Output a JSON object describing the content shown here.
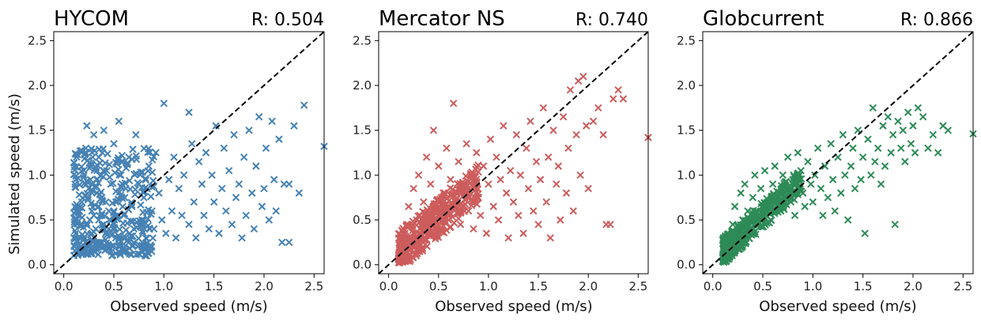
{
  "figure": {
    "ylabel": "Simulated speed (m/s)"
  },
  "chart_data": [
    {
      "type": "scatter",
      "title": "HYCOM",
      "r_label": "R: 0.504",
      "xlabel": "Observed speed (m/s)",
      "ylabel": "Simulated speed (m/s)",
      "xlim": [
        -0.1,
        2.6
      ],
      "ylim": [
        -0.1,
        2.6
      ],
      "xticks": [
        "0.0",
        "0.5",
        "1.0",
        "1.5",
        "2.0",
        "2.5"
      ],
      "yticks": [
        "0.0",
        "0.5",
        "1.0",
        "1.5",
        "2.0",
        "2.5"
      ],
      "reference_line": "y = x",
      "marker": "x",
      "color": "#4682b4",
      "points": [
        [
          0.12,
          0.35
        ],
        [
          0.15,
          0.55
        ],
        [
          0.18,
          0.7
        ],
        [
          0.2,
          1.0
        ],
        [
          0.2,
          0.3
        ],
        [
          0.22,
          0.45
        ],
        [
          0.22,
          1.3
        ],
        [
          0.23,
          1.55
        ],
        [
          0.25,
          0.2
        ],
        [
          0.25,
          0.85
        ],
        [
          0.27,
          1.1
        ],
        [
          0.28,
          0.6
        ],
        [
          0.3,
          0.15
        ],
        [
          0.3,
          1.45
        ],
        [
          0.32,
          0.4
        ],
        [
          0.33,
          0.95
        ],
        [
          0.35,
          1.2
        ],
        [
          0.35,
          0.5
        ],
        [
          0.37,
          0.25
        ],
        [
          0.38,
          0.75
        ],
        [
          0.4,
          1.5
        ],
        [
          0.42,
          0.35
        ],
        [
          0.43,
          1.05
        ],
        [
          0.45,
          0.6
        ],
        [
          0.45,
          0.2
        ],
        [
          0.47,
          0.9
        ],
        [
          0.5,
          1.35
        ],
        [
          0.5,
          0.45
        ],
        [
          0.52,
          0.7
        ],
        [
          0.55,
          1.6
        ],
        [
          0.55,
          0.3
        ],
        [
          0.57,
          1.0
        ],
        [
          0.6,
          0.55
        ],
        [
          0.62,
          0.85
        ],
        [
          0.65,
          0.25
        ],
        [
          0.65,
          1.2
        ],
        [
          0.68,
          0.65
        ],
        [
          0.7,
          0.4
        ],
        [
          0.72,
          1.45
        ],
        [
          0.75,
          0.9
        ],
        [
          0.78,
          0.5
        ],
        [
          0.8,
          0.75
        ],
        [
          0.82,
          0.3
        ],
        [
          0.85,
          1.1
        ],
        [
          0.88,
          0.6
        ],
        [
          0.9,
          0.4
        ],
        [
          0.92,
          1.25
        ],
        [
          0.95,
          0.8
        ],
        [
          0.98,
          0.5
        ],
        [
          1.0,
          1.8
        ],
        [
          1.02,
          0.35
        ],
        [
          1.05,
          0.95
        ],
        [
          1.08,
          0.6
        ],
        [
          1.1,
          1.2
        ],
        [
          1.12,
          0.3
        ],
        [
          1.15,
          0.85
        ],
        [
          1.18,
          0.55
        ],
        [
          1.2,
          1.0
        ],
        [
          1.25,
          1.7
        ],
        [
          1.25,
          0.45
        ],
        [
          1.28,
          1.35
        ],
        [
          1.3,
          0.7
        ],
        [
          1.32,
          0.3
        ],
        [
          1.35,
          1.15
        ],
        [
          1.38,
          0.9
        ],
        [
          1.4,
          0.55
        ],
        [
          1.42,
          1.25
        ],
        [
          1.45,
          0.4
        ],
        [
          1.48,
          1.0
        ],
        [
          1.5,
          0.7
        ],
        [
          1.52,
          1.55
        ],
        [
          1.55,
          0.35
        ],
        [
          1.58,
          0.85
        ],
        [
          1.6,
          1.3
        ],
        [
          1.62,
          0.6
        ],
        [
          1.65,
          1.05
        ],
        [
          1.68,
          0.45
        ],
        [
          1.7,
          1.45
        ],
        [
          1.72,
          0.75
        ],
        [
          1.75,
          0.9
        ],
        [
          1.78,
          0.3
        ],
        [
          1.8,
          1.2
        ],
        [
          1.82,
          0.55
        ],
        [
          1.85,
          1.5
        ],
        [
          1.88,
          0.8
        ],
        [
          1.9,
          0.4
        ],
        [
          1.92,
          1.1
        ],
        [
          1.95,
          1.65
        ],
        [
          1.98,
          0.65
        ],
        [
          2.0,
          0.85
        ],
        [
          2.02,
          1.3
        ],
        [
          2.05,
          0.5
        ],
        [
          2.08,
          1.6
        ],
        [
          2.1,
          0.95
        ],
        [
          2.12,
          0.6
        ],
        [
          2.15,
          1.4
        ],
        [
          2.18,
          0.25
        ],
        [
          2.2,
          0.9
        ],
        [
          2.25,
          0.9
        ],
        [
          2.3,
          1.55
        ],
        [
          2.35,
          0.8
        ],
        [
          2.4,
          1.78
        ],
        [
          2.25,
          0.25
        ],
        [
          2.6,
          1.32
        ],
        [
          0.3,
          0.55
        ],
        [
          0.35,
          0.65
        ],
        [
          0.4,
          0.45
        ],
        [
          0.28,
          0.35
        ],
        [
          0.33,
          0.8
        ],
        [
          0.45,
          0.4
        ],
        [
          0.5,
          0.6
        ],
        [
          0.38,
          0.55
        ],
        [
          0.42,
          0.7
        ],
        [
          0.26,
          0.5
        ]
      ],
      "cluster": {
        "x_range": [
          0.1,
          0.9
        ],
        "y_range": [
          0.1,
          1.3
        ],
        "count": 360
      }
    },
    {
      "type": "scatter",
      "title": "Mercator NS",
      "r_label": "R: 0.740",
      "xlabel": "Observed speed (m/s)",
      "xlim": [
        -0.1,
        2.6
      ],
      "ylim": [
        -0.1,
        2.6
      ],
      "xticks": [
        "0.0",
        "0.5",
        "1.0",
        "1.5",
        "2.0",
        "2.5"
      ],
      "yticks": [
        "0.0",
        "0.5",
        "1.0",
        "1.5",
        "2.0",
        "2.5"
      ],
      "reference_line": "y = x",
      "marker": "x",
      "color": "#cd5c5c",
      "points": [
        [
          0.15,
          0.2
        ],
        [
          0.18,
          0.45
        ],
        [
          0.2,
          0.65
        ],
        [
          0.22,
          0.3
        ],
        [
          0.25,
          0.85
        ],
        [
          0.28,
          0.5
        ],
        [
          0.3,
          1.0
        ],
        [
          0.32,
          0.35
        ],
        [
          0.35,
          0.7
        ],
        [
          0.38,
          1.2
        ],
        [
          0.4,
          0.5
        ],
        [
          0.42,
          0.9
        ],
        [
          0.45,
          1.5
        ],
        [
          0.48,
          0.6
        ],
        [
          0.5,
          1.1
        ],
        [
          0.52,
          0.4
        ],
        [
          0.55,
          0.8
        ],
        [
          0.58,
          1.3
        ],
        [
          0.6,
          0.55
        ],
        [
          0.62,
          0.95
        ],
        [
          0.65,
          1.8
        ],
        [
          0.68,
          0.7
        ],
        [
          0.7,
          1.15
        ],
        [
          0.72,
          0.45
        ],
        [
          0.75,
          0.85
        ],
        [
          0.78,
          1.35
        ],
        [
          0.8,
          0.6
        ],
        [
          0.82,
          1.0
        ],
        [
          0.85,
          0.4
        ],
        [
          0.88,
          1.25
        ],
        [
          0.9,
          0.75
        ],
        [
          0.92,
          0.55
        ],
        [
          0.95,
          1.1
        ],
        [
          0.98,
          0.35
        ],
        [
          1.0,
          0.9
        ],
        [
          1.02,
          1.4
        ],
        [
          1.05,
          0.65
        ],
        [
          1.08,
          1.2
        ],
        [
          1.1,
          0.5
        ],
        [
          1.12,
          0.95
        ],
        [
          1.15,
          1.55
        ],
        [
          1.18,
          0.8
        ],
        [
          1.2,
          0.3
        ],
        [
          1.22,
          1.05
        ],
        [
          1.25,
          0.7
        ],
        [
          1.28,
          1.45
        ],
        [
          1.3,
          0.55
        ],
        [
          1.32,
          1.0
        ],
        [
          1.35,
          0.35
        ],
        [
          1.38,
          1.3
        ],
        [
          1.4,
          0.85
        ],
        [
          1.42,
          1.6
        ],
        [
          1.45,
          0.6
        ],
        [
          1.48,
          1.15
        ],
        [
          1.5,
          0.45
        ],
        [
          1.52,
          0.95
        ],
        [
          1.55,
          1.75
        ],
        [
          1.58,
          0.7
        ],
        [
          1.6,
          1.2
        ],
        [
          1.62,
          0.3
        ],
        [
          1.65,
          1.5
        ],
        [
          1.68,
          0.9
        ],
        [
          1.7,
          1.1
        ],
        [
          1.72,
          0.5
        ],
        [
          1.75,
          1.65
        ],
        [
          1.78,
          0.8
        ],
        [
          1.8,
          1.3
        ],
        [
          1.82,
          1.95
        ],
        [
          1.85,
          0.6
        ],
        [
          1.88,
          1.45
        ],
        [
          1.9,
          2.05
        ],
        [
          1.92,
          1.0
        ],
        [
          1.95,
          2.1
        ],
        [
          1.98,
          1.55
        ],
        [
          2.0,
          0.85
        ],
        [
          2.05,
          1.6
        ],
        [
          2.1,
          1.75
        ],
        [
          2.15,
          1.45
        ],
        [
          2.18,
          0.45
        ],
        [
          2.22,
          0.45
        ],
        [
          2.25,
          1.85
        ],
        [
          2.3,
          1.95
        ],
        [
          2.35,
          1.85
        ],
        [
          2.6,
          1.42
        ],
        [
          0.33,
          0.45
        ],
        [
          0.37,
          0.55
        ],
        [
          0.41,
          0.4
        ],
        [
          0.29,
          0.3
        ],
        [
          0.45,
          0.5
        ],
        [
          0.5,
          0.45
        ],
        [
          0.55,
          0.6
        ],
        [
          0.6,
          0.5
        ]
      ],
      "cluster": {
        "x_range": [
          0.1,
          0.9
        ],
        "y_range": [
          0.05,
          0.95
        ],
        "count": 380
      }
    },
    {
      "type": "scatter",
      "title": "Globcurrent",
      "r_label": "R: 0.866",
      "xlabel": "Observed speed (m/s)",
      "xlim": [
        -0.1,
        2.6
      ],
      "ylim": [
        -0.1,
        2.6
      ],
      "xticks": [
        "0.0",
        "0.5",
        "1.0",
        "1.5",
        "2.0",
        "2.5"
      ],
      "yticks": [
        "0.0",
        "0.5",
        "1.0",
        "1.5",
        "2.0",
        "2.5"
      ],
      "reference_line": "y = x",
      "marker": "x",
      "color": "#2e8b57",
      "points": [
        [
          0.12,
          0.12
        ],
        [
          0.15,
          0.3
        ],
        [
          0.18,
          0.2
        ],
        [
          0.2,
          0.45
        ],
        [
          0.22,
          0.65
        ],
        [
          0.25,
          0.35
        ],
        [
          0.28,
          0.8
        ],
        [
          0.3,
          0.5
        ],
        [
          0.32,
          0.9
        ],
        [
          0.35,
          0.6
        ],
        [
          0.38,
          0.4
        ],
        [
          0.4,
          0.75
        ],
        [
          0.42,
          1.0
        ],
        [
          0.45,
          0.55
        ],
        [
          0.48,
          0.85
        ],
        [
          0.5,
          0.65
        ],
        [
          0.52,
          1.05
        ],
        [
          0.55,
          0.7
        ],
        [
          0.58,
          0.5
        ],
        [
          0.6,
          0.9
        ],
        [
          0.62,
          1.1
        ],
        [
          0.65,
          0.75
        ],
        [
          0.68,
          0.6
        ],
        [
          0.7,
          1.0
        ],
        [
          0.72,
          0.85
        ],
        [
          0.75,
          1.2
        ],
        [
          0.78,
          0.7
        ],
        [
          0.8,
          0.95
        ],
        [
          0.82,
          0.55
        ],
        [
          0.85,
          1.25
        ],
        [
          0.88,
          1.05
        ],
        [
          0.9,
          0.8
        ],
        [
          0.92,
          0.65
        ],
        [
          0.95,
          1.15
        ],
        [
          0.98,
          0.9
        ],
        [
          1.0,
          0.7
        ],
        [
          1.02,
          1.0
        ],
        [
          1.05,
          1.3
        ],
        [
          1.08,
          0.85
        ],
        [
          1.1,
          0.55
        ],
        [
          1.12,
          1.1
        ],
        [
          1.15,
          0.75
        ],
        [
          1.18,
          1.35
        ],
        [
          1.2,
          0.95
        ],
        [
          1.22,
          0.6
        ],
        [
          1.25,
          1.2
        ],
        [
          1.28,
          0.8
        ],
        [
          1.3,
          1.45
        ],
        [
          1.32,
          1.0
        ],
        [
          1.35,
          0.5
        ],
        [
          1.38,
          1.1
        ],
        [
          1.4,
          1.3
        ],
        [
          1.42,
          0.85
        ],
        [
          1.45,
          1.5
        ],
        [
          1.48,
          0.95
        ],
        [
          1.5,
          1.2
        ],
        [
          1.52,
          0.35
        ],
        [
          1.55,
          1.4
        ],
        [
          1.58,
          1.0
        ],
        [
          1.6,
          1.75
        ],
        [
          1.62,
          1.15
        ],
        [
          1.65,
          1.3
        ],
        [
          1.68,
          0.9
        ],
        [
          1.7,
          1.55
        ],
        [
          1.72,
          1.1
        ],
        [
          1.75,
          1.65
        ],
        [
          1.78,
          1.25
        ],
        [
          1.8,
          1.45
        ],
        [
          1.82,
          0.45
        ],
        [
          1.85,
          1.6
        ],
        [
          1.88,
          1.3
        ],
        [
          1.9,
          1.5
        ],
        [
          1.92,
          1.15
        ],
        [
          1.95,
          1.7
        ],
        [
          1.98,
          1.35
        ],
        [
          2.0,
          1.55
        ],
        [
          2.02,
          1.25
        ],
        [
          2.05,
          1.75
        ],
        [
          2.1,
          1.65
        ],
        [
          2.15,
          1.3
        ],
        [
          2.2,
          1.45
        ],
        [
          2.25,
          1.25
        ],
        [
          2.3,
          1.55
        ],
        [
          2.35,
          1.5
        ],
        [
          2.6,
          1.46
        ],
        [
          0.3,
          0.35
        ],
        [
          0.35,
          0.45
        ],
        [
          0.4,
          0.4
        ],
        [
          0.25,
          0.28
        ],
        [
          0.45,
          0.48
        ],
        [
          0.5,
          0.52
        ],
        [
          0.55,
          0.58
        ]
      ],
      "cluster": {
        "x_range": [
          0.1,
          0.9
        ],
        "y_range": [
          0.05,
          0.95
        ],
        "count": 380
      }
    }
  ]
}
